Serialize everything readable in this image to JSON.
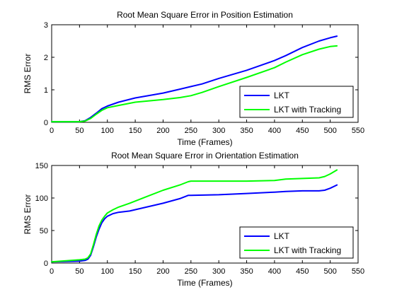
{
  "chart_data": [
    {
      "type": "line",
      "title": "Root Mean Square Error in Position Estimation",
      "xlabel": "Time (Frames)",
      "ylabel": "RMS Error",
      "xlim": [
        0,
        550
      ],
      "ylim": [
        0,
        3
      ],
      "xticks": [
        0,
        50,
        100,
        150,
        200,
        250,
        300,
        350,
        400,
        450,
        500,
        550
      ],
      "yticks": [
        0,
        1,
        2,
        3
      ],
      "grid": false,
      "legend_position": "bottom-right",
      "series": [
        {
          "name": "LKT",
          "color": "#0000ff",
          "x": [
            0,
            50,
            60,
            70,
            80,
            90,
            100,
            120,
            150,
            200,
            230,
            250,
            270,
            300,
            350,
            400,
            420,
            450,
            480,
            500,
            512
          ],
          "y": [
            0.02,
            0.02,
            0.05,
            0.15,
            0.28,
            0.42,
            0.5,
            0.62,
            0.75,
            0.9,
            1.02,
            1.1,
            1.18,
            1.35,
            1.6,
            1.9,
            2.05,
            2.3,
            2.5,
            2.6,
            2.65
          ]
        },
        {
          "name": "LKT with Tracking",
          "color": "#00ff00",
          "x": [
            0,
            50,
            60,
            70,
            80,
            90,
            100,
            120,
            150,
            200,
            230,
            250,
            270,
            300,
            350,
            400,
            420,
            450,
            480,
            500,
            512
          ],
          "y": [
            0.02,
            0.02,
            0.04,
            0.12,
            0.25,
            0.37,
            0.45,
            0.52,
            0.62,
            0.7,
            0.76,
            0.82,
            0.92,
            1.1,
            1.38,
            1.68,
            1.85,
            2.08,
            2.25,
            2.33,
            2.35
          ]
        }
      ]
    },
    {
      "type": "line",
      "title": "Root Mean Square Error in Orientation Estimation",
      "xlabel": "Time (Frames)",
      "ylabel": "RMS Error",
      "xlim": [
        0,
        550
      ],
      "ylim": [
        0,
        150
      ],
      "xticks": [
        0,
        50,
        100,
        150,
        200,
        250,
        300,
        350,
        400,
        450,
        500,
        550
      ],
      "yticks": [
        0,
        50,
        100,
        150
      ],
      "grid": false,
      "legend_position": "bottom-right",
      "series": [
        {
          "name": "LKT",
          "color": "#0000ff",
          "x": [
            0,
            50,
            60,
            65,
            70,
            75,
            80,
            85,
            90,
            95,
            100,
            110,
            120,
            140,
            170,
            200,
            230,
            245,
            250,
            300,
            350,
            400,
            420,
            450,
            480,
            490,
            500,
            512
          ],
          "y": [
            2,
            3,
            4,
            6,
            12,
            25,
            40,
            52,
            62,
            68,
            72,
            76,
            78,
            80,
            86,
            92,
            99,
            104,
            104,
            105,
            107,
            109,
            110,
            111,
            111,
            112,
            115,
            120
          ]
        },
        {
          "name": "LKT with Tracking",
          "color": "#00ff00",
          "x": [
            0,
            50,
            60,
            65,
            70,
            75,
            80,
            85,
            90,
            95,
            100,
            110,
            120,
            140,
            170,
            200,
            230,
            245,
            250,
            300,
            350,
            400,
            420,
            450,
            480,
            490,
            500,
            512
          ],
          "y": [
            2,
            5,
            6,
            8,
            14,
            28,
            44,
            57,
            66,
            72,
            77,
            82,
            86,
            92,
            102,
            112,
            120,
            125,
            126,
            126,
            126,
            127,
            129,
            130,
            131,
            133,
            137,
            143
          ]
        }
      ]
    }
  ]
}
